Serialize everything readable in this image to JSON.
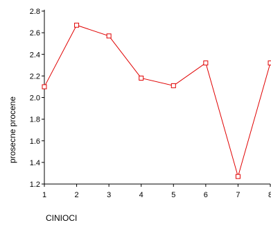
{
  "chart_data": {
    "type": "line",
    "xlabel": "CINIOCI",
    "ylabel": "prosecne procene",
    "x": [
      1,
      2,
      3,
      4,
      5,
      6,
      7,
      8
    ],
    "x_ticks": [
      "1",
      "2",
      "3",
      "4",
      "5",
      "6",
      "7",
      "8"
    ],
    "y_ticks": [
      "1.2",
      "1.4",
      "1.6",
      "1.8",
      "2.0",
      "2.2",
      "2.4",
      "2.6",
      "2.8"
    ],
    "xlim": [
      1,
      8
    ],
    "ylim": [
      1.2,
      2.8
    ],
    "grid": false,
    "legend": "none",
    "series": [
      {
        "values": [
          2.1,
          2.67,
          2.57,
          2.18,
          2.11,
          2.32,
          1.27,
          2.32
        ],
        "color": "#e00000",
        "marker": "open-square"
      }
    ]
  }
}
